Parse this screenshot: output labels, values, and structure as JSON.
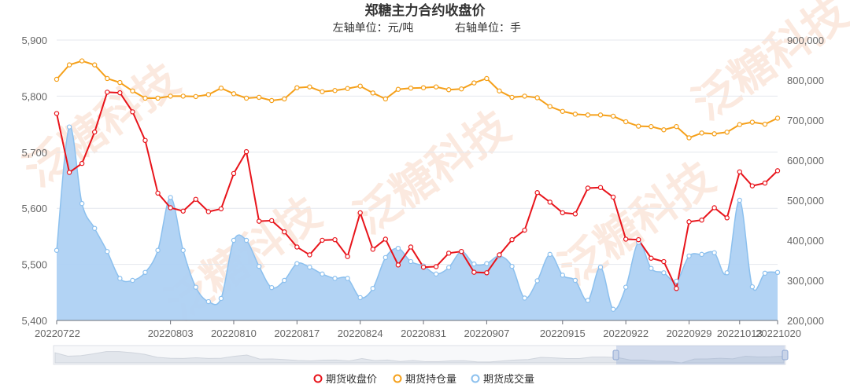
{
  "watermark": "泛糖科技",
  "chart_data": {
    "type": "line",
    "title": "郑糖主力合约收盘价",
    "subtitle_left": "左轴单位：元/吨",
    "subtitle_right": "右轴单位：手",
    "x_tick_labels": [
      "20220722",
      "20220803",
      "20220810",
      "20220817",
      "20220824",
      "20220831",
      "20220907",
      "20220915",
      "20220922",
      "20220929",
      "20221013",
      "20221020"
    ],
    "y_left": {
      "min": 5400,
      "max": 5900,
      "ticks": [
        "5,400",
        "5,500",
        "5,600",
        "5,700",
        "5,800",
        "5,900"
      ]
    },
    "y_right": {
      "min": 200000,
      "max": 900000,
      "ticks": [
        "200,000",
        "300,000",
        "400,000",
        "500,000",
        "600,000",
        "700,000",
        "800,000",
        "900,000"
      ]
    },
    "legend_position": "bottom-center",
    "colors": {
      "close": "#e8141b",
      "oi": "#f5a01a",
      "volume_fill": "#aed1f3",
      "volume_stroke": "#8cc0ee"
    },
    "series": [
      {
        "name": "期货收盘价",
        "axis": "left",
        "values": [
          5769,
          5664,
          5680,
          5736,
          5807,
          5806,
          5772,
          5721,
          5627,
          5601,
          5595,
          5616,
          5594,
          5599,
          5662,
          5701,
          5577,
          5578,
          5558,
          5531,
          5517,
          5543,
          5544,
          5514,
          5592,
          5527,
          5545,
          5499,
          5531,
          5495,
          5496,
          5520,
          5523,
          5486,
          5485,
          5517,
          5544,
          5561,
          5628,
          5611,
          5592,
          5590,
          5636,
          5637,
          5620,
          5545,
          5544,
          5511,
          5505,
          5457,
          5576,
          5579,
          5601,
          5583,
          5665,
          5640,
          5645,
          5667
        ]
      },
      {
        "name": "期货持仓量",
        "axis": "right",
        "values": [
          802000,
          838000,
          848000,
          838000,
          804000,
          794000,
          773000,
          755000,
          755000,
          760000,
          760000,
          759000,
          764000,
          780000,
          766000,
          755000,
          757000,
          749000,
          753000,
          781000,
          783000,
          771000,
          774000,
          779000,
          785000,
          768000,
          753000,
          777000,
          780000,
          781000,
          783000,
          776000,
          778000,
          793000,
          804000,
          773000,
          757000,
          760000,
          756000,
          734000,
          722000,
          715000,
          713000,
          713000,
          710000,
          696000,
          685000,
          684000,
          676000,
          684000,
          656000,
          668000,
          666000,
          670000,
          689000,
          695000,
          690000,
          705000
        ]
      },
      {
        "name": "期货成交量",
        "axis": "right",
        "values": [
          375000,
          683000,
          492000,
          430000,
          372000,
          305000,
          300000,
          320000,
          375000,
          507000,
          375000,
          283000,
          247000,
          255000,
          400000,
          400000,
          335000,
          282000,
          300000,
          342000,
          333000,
          316000,
          305000,
          305000,
          257000,
          280000,
          357000,
          380000,
          347000,
          336000,
          316000,
          332000,
          372000,
          341000,
          342000,
          361000,
          335000,
          256000,
          299000,
          365000,
          313000,
          300000,
          250000,
          333000,
          228000,
          283000,
          395000,
          330000,
          319000,
          298000,
          361000,
          365000,
          369000,
          319000,
          500000,
          284000,
          318000,
          320000
        ]
      }
    ]
  }
}
